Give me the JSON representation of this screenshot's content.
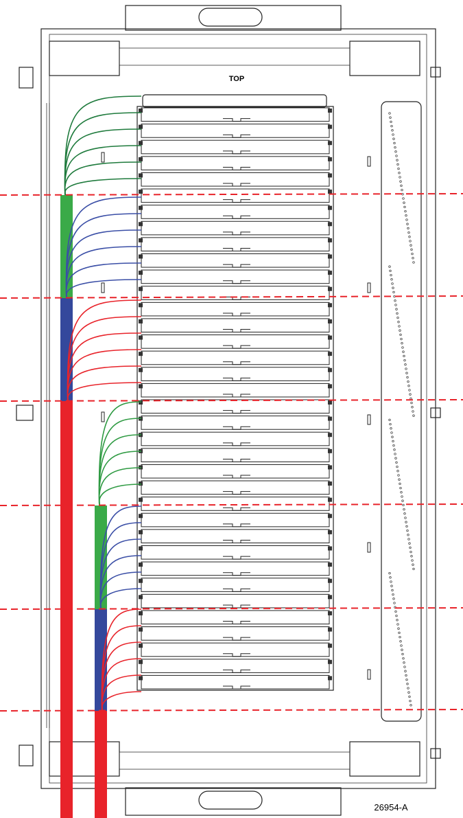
{
  "labels": {
    "top": "TOP",
    "drawing_number": "26954-A"
  }
}
